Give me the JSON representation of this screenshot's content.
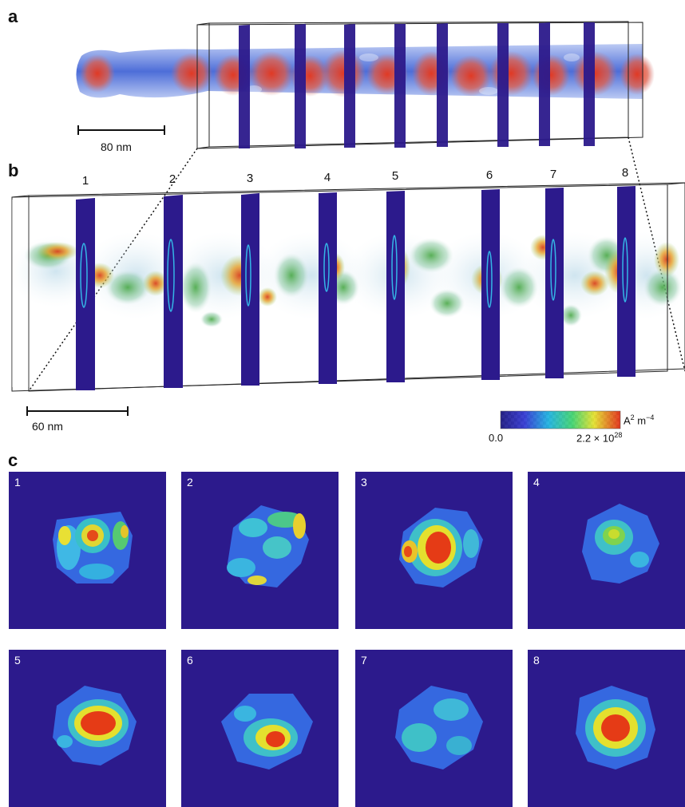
{
  "panels": {
    "a": "a",
    "b": "b",
    "c": "c"
  },
  "panel_a": {
    "scale_bar_label": "80 nm"
  },
  "panel_b": {
    "scale_bar_label": "60 nm",
    "slice_numbers": [
      "1",
      "2",
      "3",
      "4",
      "5",
      "6",
      "7",
      "8"
    ],
    "colorbar": {
      "min_label": "0.0",
      "max_base": "2.2 × 10",
      "max_exp": "28",
      "unit_base": "A",
      "unit_exp1": "2",
      "unit_mid": " m",
      "unit_exp2": "−4"
    }
  },
  "panel_c": {
    "tile_numbers": [
      "1",
      "2",
      "3",
      "4",
      "5",
      "6",
      "7",
      "8"
    ]
  },
  "colors": {
    "background_slice": "#2c1a8c",
    "dense": "#e23a1c",
    "sparse": "#3a63d8"
  }
}
